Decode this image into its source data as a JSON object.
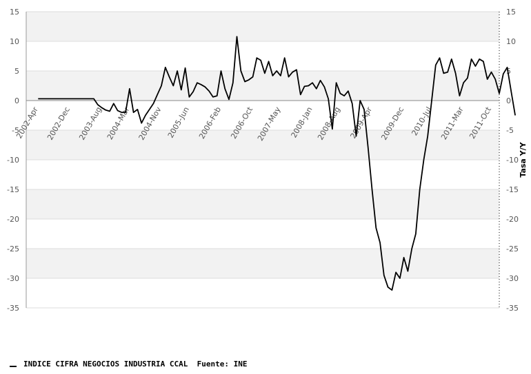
{
  "chart_data": {
    "type": "line",
    "title": "",
    "xlabel": "",
    "ylabel": "Tasa Y/Y",
    "ylim": [
      -35,
      15
    ],
    "y_ticks": [
      15,
      10,
      5,
      0,
      -5,
      -10,
      -15,
      -20,
      -25,
      -30,
      -35
    ],
    "x_range": [
      "2002-01",
      "2011-12"
    ],
    "x_ticks": [
      {
        "label": "2002-Apr",
        "date": "2002-04"
      },
      {
        "label": "2002-Dec",
        "date": "2002-12"
      },
      {
        "label": "2003-Aug",
        "date": "2003-08"
      },
      {
        "label": "2004-Mar",
        "date": "2004-03"
      },
      {
        "label": "2004-Nov",
        "date": "2004-11"
      },
      {
        "label": "2005-Jun",
        "date": "2005-06"
      },
      {
        "label": "2006-Feb",
        "date": "2006-02"
      },
      {
        "label": "2006-Oct",
        "date": "2006-10"
      },
      {
        "label": "2007-May",
        "date": "2007-05"
      },
      {
        "label": "2008-Jan",
        "date": "2008-01"
      },
      {
        "label": "2008-Aug",
        "date": "2008-08"
      },
      {
        "label": "2009-Apr",
        "date": "2009-04"
      },
      {
        "label": "2009-Dec",
        "date": "2009-12"
      },
      {
        "label": "2010-Jul",
        "date": "2010-07"
      },
      {
        "label": "2011-Mar",
        "date": "2011-03"
      },
      {
        "label": "2011-Oct",
        "date": "2011-10"
      }
    ],
    "grid": "horizontal bands",
    "legend": "bottom-left",
    "series": [
      {
        "name": "INDICE CIFRA NEGOCIOS INDUSTRIA CCAL  Fuente: INE",
        "color": "#000000",
        "points": [
          {
            "x": "2002-04",
            "y": 0.3
          },
          {
            "x": "2002-05",
            "y": 0.3
          },
          {
            "x": "2002-06",
            "y": 0.3
          },
          {
            "x": "2002-07",
            "y": 0.3
          },
          {
            "x": "2002-08",
            "y": 0.3
          },
          {
            "x": "2002-09",
            "y": 0.3
          },
          {
            "x": "2002-10",
            "y": 0.3
          },
          {
            "x": "2002-11",
            "y": 0.3
          },
          {
            "x": "2002-12",
            "y": 0.3
          },
          {
            "x": "2003-01",
            "y": 0.3
          },
          {
            "x": "2003-02",
            "y": 0.3
          },
          {
            "x": "2003-03",
            "y": 0.3
          },
          {
            "x": "2003-04",
            "y": 0.3
          },
          {
            "x": "2003-05",
            "y": 0.3
          },
          {
            "x": "2003-06",
            "y": 0.3
          },
          {
            "x": "2003-07",
            "y": -0.7
          },
          {
            "x": "2003-08",
            "y": -1.2
          },
          {
            "x": "2003-09",
            "y": -1.6
          },
          {
            "x": "2003-10",
            "y": -1.8
          },
          {
            "x": "2003-11",
            "y": -0.5
          },
          {
            "x": "2003-12",
            "y": -1.7
          },
          {
            "x": "2004-01",
            "y": -2.0
          },
          {
            "x": "2004-02",
            "y": -2.0
          },
          {
            "x": "2004-03",
            "y": 2.0
          },
          {
            "x": "2004-04",
            "y": -2.0
          },
          {
            "x": "2004-05",
            "y": -1.5
          },
          {
            "x": "2004-06",
            "y": -3.8
          },
          {
            "x": "2004-07",
            "y": -2.5
          },
          {
            "x": "2004-08",
            "y": -1.5
          },
          {
            "x": "2004-09",
            "y": -0.5
          },
          {
            "x": "2004-10",
            "y": 1.0
          },
          {
            "x": "2004-11",
            "y": 2.5
          },
          {
            "x": "2004-12",
            "y": 5.6
          },
          {
            "x": "2005-01",
            "y": 4.0
          },
          {
            "x": "2005-02",
            "y": 2.5
          },
          {
            "x": "2005-03",
            "y": 5.0
          },
          {
            "x": "2005-04",
            "y": 1.8
          },
          {
            "x": "2005-05",
            "y": 5.5
          },
          {
            "x": "2005-06",
            "y": 0.6
          },
          {
            "x": "2005-07",
            "y": 1.5
          },
          {
            "x": "2005-08",
            "y": 3.0
          },
          {
            "x": "2005-09",
            "y": 2.7
          },
          {
            "x": "2005-10",
            "y": 2.3
          },
          {
            "x": "2005-11",
            "y": 1.6
          },
          {
            "x": "2005-12",
            "y": 0.6
          },
          {
            "x": "2006-01",
            "y": 0.8
          },
          {
            "x": "2006-02",
            "y": 5.0
          },
          {
            "x": "2006-03",
            "y": 2.0
          },
          {
            "x": "2006-04",
            "y": 0.2
          },
          {
            "x": "2006-05",
            "y": 3.0
          },
          {
            "x": "2006-06",
            "y": 10.8
          },
          {
            "x": "2006-07",
            "y": 5.0
          },
          {
            "x": "2006-08",
            "y": 3.2
          },
          {
            "x": "2006-09",
            "y": 3.5
          },
          {
            "x": "2006-10",
            "y": 4.0
          },
          {
            "x": "2006-11",
            "y": 7.2
          },
          {
            "x": "2006-12",
            "y": 6.8
          },
          {
            "x": "2007-01",
            "y": 4.6
          },
          {
            "x": "2007-02",
            "y": 6.6
          },
          {
            "x": "2007-03",
            "y": 4.2
          },
          {
            "x": "2007-04",
            "y": 5.0
          },
          {
            "x": "2007-05",
            "y": 4.2
          },
          {
            "x": "2007-06",
            "y": 7.2
          },
          {
            "x": "2007-07",
            "y": 4.0
          },
          {
            "x": "2007-08",
            "y": 4.8
          },
          {
            "x": "2007-09",
            "y": 5.2
          },
          {
            "x": "2007-10",
            "y": 1.0
          },
          {
            "x": "2007-11",
            "y": 2.4
          },
          {
            "x": "2007-12",
            "y": 2.5
          },
          {
            "x": "2008-01",
            "y": 3.0
          },
          {
            "x": "2008-02",
            "y": 2.0
          },
          {
            "x": "2008-03",
            "y": 3.4
          },
          {
            "x": "2008-04",
            "y": 2.3
          },
          {
            "x": "2008-05",
            "y": 0.3
          },
          {
            "x": "2008-06",
            "y": -4.8
          },
          {
            "x": "2008-07",
            "y": 3.0
          },
          {
            "x": "2008-08",
            "y": 1.2
          },
          {
            "x": "2008-09",
            "y": 0.8
          },
          {
            "x": "2008-10",
            "y": 1.6
          },
          {
            "x": "2008-11",
            "y": -0.5
          },
          {
            "x": "2008-12",
            "y": -6.0
          },
          {
            "x": "2009-01",
            "y": 0.0
          },
          {
            "x": "2009-02",
            "y": -1.5
          },
          {
            "x": "2009-03",
            "y": -8.0
          },
          {
            "x": "2009-04",
            "y": -15.0
          },
          {
            "x": "2009-05",
            "y": -21.5
          },
          {
            "x": "2009-06",
            "y": -24.0
          },
          {
            "x": "2009-07",
            "y": -29.5
          },
          {
            "x": "2009-08",
            "y": -31.5
          },
          {
            "x": "2009-09",
            "y": -32.0
          },
          {
            "x": "2009-10",
            "y": -29.0
          },
          {
            "x": "2009-11",
            "y": -30.0
          },
          {
            "x": "2009-12",
            "y": -26.5
          },
          {
            "x": "2010-01",
            "y": -28.8
          },
          {
            "x": "2010-02",
            "y": -25.0
          },
          {
            "x": "2010-03",
            "y": -22.5
          },
          {
            "x": "2010-04",
            "y": -15.0
          },
          {
            "x": "2010-05",
            "y": -10.0
          },
          {
            "x": "2010-06",
            "y": -6.0
          },
          {
            "x": "2010-07",
            "y": 0.0
          },
          {
            "x": "2010-08",
            "y": 6.0
          },
          {
            "x": "2010-09",
            "y": 7.2
          },
          {
            "x": "2010-10",
            "y": 4.6
          },
          {
            "x": "2010-11",
            "y": 4.8
          },
          {
            "x": "2010-12",
            "y": 7.0
          },
          {
            "x": "2011-01",
            "y": 4.6
          },
          {
            "x": "2011-02",
            "y": 0.8
          },
          {
            "x": "2011-03",
            "y": 3.0
          },
          {
            "x": "2011-04",
            "y": 3.8
          },
          {
            "x": "2011-05",
            "y": 7.0
          },
          {
            "x": "2011-06",
            "y": 5.8
          },
          {
            "x": "2011-07",
            "y": 7.0
          },
          {
            "x": "2011-08",
            "y": 6.6
          },
          {
            "x": "2011-09",
            "y": 3.6
          },
          {
            "x": "2011-10",
            "y": 4.8
          },
          {
            "x": "2011-11",
            "y": 3.6
          },
          {
            "x": "2011-12",
            "y": 1.2
          },
          {
            "x": "2012-01",
            "y": 4.5
          },
          {
            "x": "2012-02",
            "y": 5.6
          },
          {
            "x": "2012-03",
            "y": 1.5
          },
          {
            "x": "2012-04",
            "y": -2.5
          }
        ]
      }
    ]
  },
  "legend": {
    "label": "INDICE CIFRA NEGOCIOS INDUSTRIA CCAL  Fuente: INE"
  }
}
